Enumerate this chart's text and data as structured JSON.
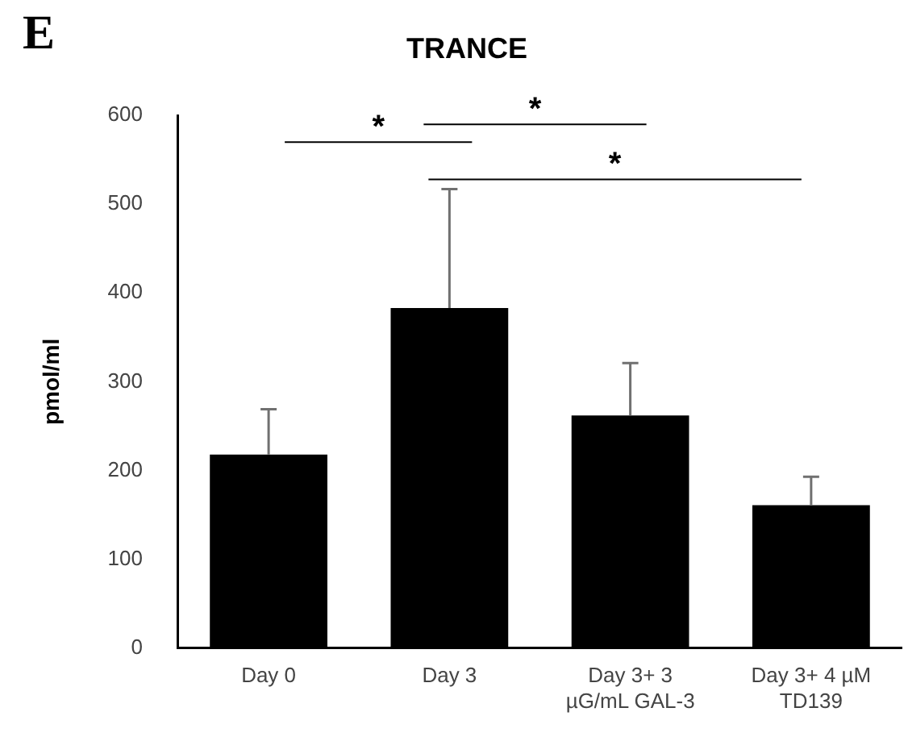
{
  "chart_data": {
    "type": "bar",
    "title": "TRANCE",
    "ylabel": "pmol/ml",
    "categories": [
      "Day 0",
      "Day 3",
      "Day 3+ 3 µG/mL GAL-3",
      "Day 3+ 4 µM TD139"
    ],
    "values": [
      218,
      383,
      262,
      161
    ],
    "errors": [
      [
        218,
        269
      ],
      [
        383,
        517
      ],
      [
        262,
        321
      ],
      [
        161,
        193
      ]
    ],
    "color": "#000000",
    "ylim": [
      0,
      600
    ],
    "yticks": [
      0,
      100,
      200,
      300,
      400,
      500,
      600
    ],
    "annotations": [
      "E",
      "*",
      "*",
      "*"
    ],
    "grid": false,
    "legend": false
  }
}
